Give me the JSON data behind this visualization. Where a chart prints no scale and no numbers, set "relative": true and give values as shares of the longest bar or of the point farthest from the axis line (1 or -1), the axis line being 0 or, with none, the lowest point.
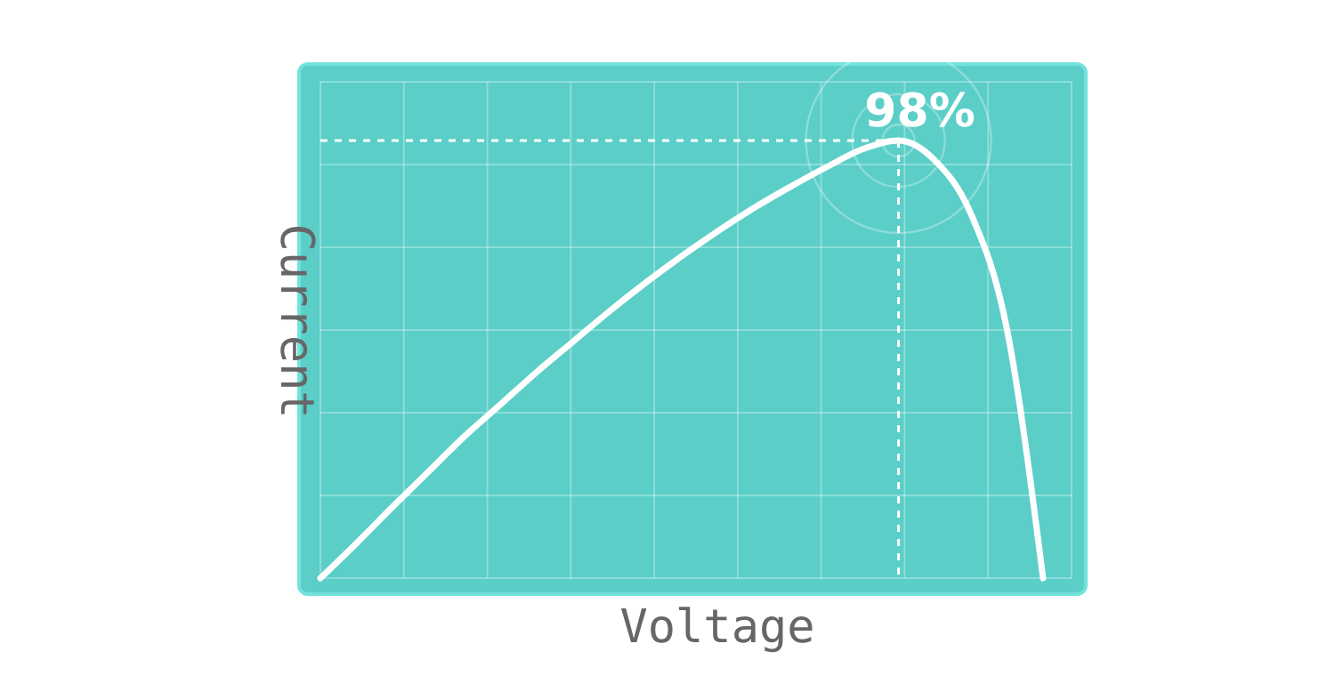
{
  "chart_data": {
    "type": "line",
    "relative": true,
    "xlabel": "Voltage",
    "ylabel": "Current",
    "categories": [
      null,
      null,
      null,
      null,
      null,
      null,
      null,
      null,
      null,
      null,
      null,
      null,
      null,
      null,
      null,
      null,
      null,
      null,
      null,
      null,
      null
    ],
    "series": [
      {
        "color": "#ffffff",
        "values": [
          0,
          0.08,
          0.163,
          0.244,
          0.325,
          0.398,
          0.472,
          0.541,
          0.61,
          0.675,
          0.736,
          0.793,
          0.846,
          0.894,
          0.939,
          0.98,
          1,
          0.955,
          0.833,
          0.569,
          0
        ]
      }
    ],
    "ref_lines": [
      {
        "axis": "y",
        "value": 1,
        "color": "#ffffff",
        "line_style": "dashed"
      }
    ],
    "annotations": [
      "98%"
    ],
    "grid": true,
    "marker": "none",
    "line_style": "solid"
  }
}
